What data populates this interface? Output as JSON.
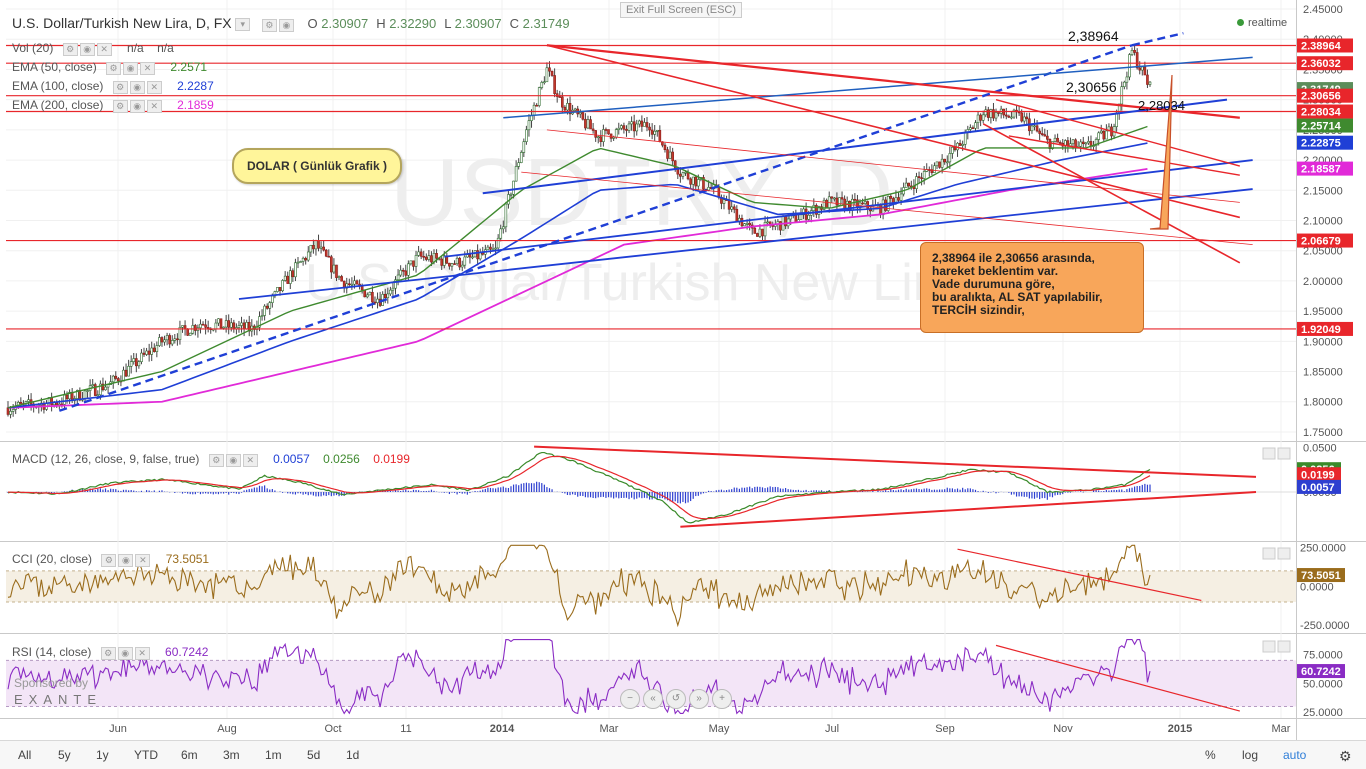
{
  "header": {
    "symbol": "U.S. Dollar/Turkish New Lira, D, FX",
    "ohlc": [
      {
        "label": "O",
        "value": "2.30907"
      },
      {
        "label": "H",
        "value": "2.32290"
      },
      {
        "label": "L",
        "value": "2.30907"
      },
      {
        "label": "C",
        "value": "2.31749"
      }
    ],
    "exit_fullscreen": "Exit Full Screen (ESC)",
    "realtime": "realtime"
  },
  "indicators": {
    "vol": {
      "label": "Vol (20)",
      "v1": "n/a",
      "v2": "n/a"
    },
    "ema50": {
      "label": "EMA (50, close)",
      "value": "2.2571",
      "color": "#3f8a2f"
    },
    "ema100": {
      "label": "EMA (100, close)",
      "value": "2.2287",
      "color": "#1f3fd6"
    },
    "ema200": {
      "label": "EMA (200, close)",
      "value": "2.1859",
      "color": "#e12ad8"
    },
    "macd": {
      "label": "MACD (12, 26, close, 9, false, true)",
      "hist": "0.0057",
      "macd": "0.0256",
      "signal": "0.0199"
    },
    "cci": {
      "label": "CCI (20, close)",
      "value": "73.5051"
    },
    "rsi": {
      "label": "RSI (14, close)",
      "value": "60.7242"
    }
  },
  "watermark": {
    "ticker": "USDTRY, D",
    "name": "U.S. Dollar/Turkish New Lira"
  },
  "annotations": {
    "bubble": "DOLAR ( Günlük Grafik )",
    "box_lines": [
      "2,38964 ile 2,30656 arasında,",
      "hareket beklentim var.",
      "Vade durumuna göre,",
      "bu aralıkta, AL SAT yapılabilir,",
      "TERCİH sizindir,"
    ],
    "level_labels": [
      "2,38964",
      "2,30656",
      "2,28034"
    ]
  },
  "bottom": {
    "ranges": [
      "All",
      "5y",
      "1y",
      "YTD",
      "6m",
      "3m",
      "1m",
      "5d",
      "1d"
    ],
    "right": [
      "%",
      "log",
      "auto"
    ]
  },
  "sponsor": {
    "text": "Sponsored by",
    "brand": "EXANTE"
  },
  "chart_data": {
    "type": "candlestick",
    "x_labels": [
      "Jun",
      "Aug",
      "Oct",
      "11",
      "2014",
      "Mar",
      "May",
      "Jul",
      "Sep",
      "Nov",
      "2015",
      "Mar"
    ],
    "y_axis_price": [
      "2.45000",
      "2.40000",
      "2.35000",
      "2.30000",
      "2.25000",
      "2.20000",
      "2.15000",
      "2.10000",
      "2.05000",
      "2.00000",
      "1.95000",
      "1.90000",
      "1.85000",
      "1.80000",
      "1.75000"
    ],
    "price_range": [
      1.735,
      2.455
    ],
    "key_prices": [
      {
        "value": "2.38964",
        "color": "#e8262b"
      },
      {
        "value": "2.36032",
        "color": "#e8262b"
      },
      {
        "value": "2.31749",
        "color": "#5b8d5a"
      },
      {
        "value": "2.30656",
        "color": "#e8262b"
      },
      {
        "value": "2.28034",
        "color": "#e8262b"
      },
      {
        "value": "2.25714",
        "color": "#3f8a2f"
      },
      {
        "value": "2.22875",
        "color": "#1f3fd6"
      },
      {
        "value": "2.18587",
        "color": "#e12ad8"
      },
      {
        "value": "2.06679",
        "color": "#e8262b"
      },
      {
        "value": "1.92049",
        "color": "#e8262b"
      }
    ],
    "horizontal_levels": [
      2.38964,
      2.36032,
      2.30656,
      2.28034,
      2.06679,
      1.92049
    ],
    "price_anchors": [
      [
        0,
        1.79
      ],
      [
        20,
        1.8
      ],
      [
        40,
        1.83
      ],
      [
        60,
        1.9
      ],
      [
        75,
        1.93
      ],
      [
        95,
        1.92
      ],
      [
        110,
        2.01
      ],
      [
        120,
        2.06
      ],
      [
        130,
        2.0
      ],
      [
        145,
        1.97
      ],
      [
        160,
        2.04
      ],
      [
        175,
        2.03
      ],
      [
        190,
        2.05
      ],
      [
        202,
        2.25
      ],
      [
        210,
        2.35
      ],
      [
        215,
        2.3
      ],
      [
        230,
        2.24
      ],
      [
        250,
        2.26
      ],
      [
        262,
        2.18
      ],
      [
        275,
        2.15
      ],
      [
        290,
        2.08
      ],
      [
        305,
        2.1
      ],
      [
        320,
        2.13
      ],
      [
        340,
        2.12
      ],
      [
        355,
        2.17
      ],
      [
        370,
        2.22
      ],
      [
        380,
        2.28
      ],
      [
        395,
        2.27
      ],
      [
        405,
        2.23
      ],
      [
        420,
        2.22
      ],
      [
        430,
        2.25
      ],
      [
        438,
        2.38
      ],
      [
        445,
        2.32
      ]
    ],
    "ema50_anchors": [
      [
        0,
        1.79
      ],
      [
        60,
        1.85
      ],
      [
        110,
        1.95
      ],
      [
        160,
        2.01
      ],
      [
        200,
        2.15
      ],
      [
        230,
        2.22
      ],
      [
        260,
        2.19
      ],
      [
        290,
        2.13
      ],
      [
        320,
        2.12
      ],
      [
        350,
        2.15
      ],
      [
        380,
        2.22
      ],
      [
        420,
        2.22
      ],
      [
        445,
        2.257
      ]
    ],
    "ema100_anchors": [
      [
        0,
        1.79
      ],
      [
        60,
        1.82
      ],
      [
        110,
        1.9
      ],
      [
        160,
        1.97
      ],
      [
        200,
        2.07
      ],
      [
        230,
        2.15
      ],
      [
        260,
        2.16
      ],
      [
        300,
        2.11
      ],
      [
        340,
        2.12
      ],
      [
        370,
        2.16
      ],
      [
        410,
        2.2
      ],
      [
        445,
        2.229
      ]
    ],
    "ema200_anchors": [
      [
        0,
        1.79
      ],
      [
        60,
        1.8
      ],
      [
        110,
        1.85
      ],
      [
        160,
        1.9
      ],
      [
        200,
        1.98
      ],
      [
        240,
        2.06
      ],
      [
        290,
        2.09
      ],
      [
        340,
        2.11
      ],
      [
        390,
        2.15
      ],
      [
        445,
        2.186
      ]
    ],
    "macd_axis": [
      "0.0500",
      "0.0250",
      "0.0000"
    ],
    "macd_range": [
      -0.055,
      0.055
    ],
    "macd_anchors": [
      [
        0,
        0.0
      ],
      [
        20,
        -0.002
      ],
      [
        40,
        0.01
      ],
      [
        60,
        0.014
      ],
      [
        75,
        0.009
      ],
      [
        90,
        0.003
      ],
      [
        100,
        0.018
      ],
      [
        115,
        0.01
      ],
      [
        130,
        -0.003
      ],
      [
        145,
        0.002
      ],
      [
        165,
        0.008
      ],
      [
        180,
        0.002
      ],
      [
        195,
        0.018
      ],
      [
        208,
        0.045
      ],
      [
        220,
        0.035
      ],
      [
        240,
        0.01
      ],
      [
        255,
        -0.01
      ],
      [
        265,
        -0.035
      ],
      [
        280,
        -0.025
      ],
      [
        300,
        -0.005
      ],
      [
        320,
        0.0
      ],
      [
        340,
        0.003
      ],
      [
        355,
        0.012
      ],
      [
        375,
        0.025
      ],
      [
        390,
        0.022
      ],
      [
        405,
        0.0
      ],
      [
        420,
        0.002
      ],
      [
        435,
        0.008
      ],
      [
        445,
        0.0256
      ]
    ],
    "cci_axis": [
      "250.0000",
      "0.0000",
      "-250.0000"
    ],
    "cci_range": [
      -300,
      280
    ],
    "rsi_axis": [
      "75.0000",
      "50.0000",
      "25.0000"
    ],
    "rsi_range": [
      20,
      92
    ]
  }
}
